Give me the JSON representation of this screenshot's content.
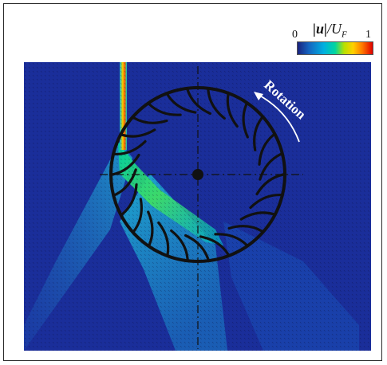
{
  "colorbar": {
    "label": "|u|/U_F",
    "min": "0",
    "max": "1",
    "colors": [
      "#1a237e",
      "#1565c0",
      "#00b0e0",
      "#00d6a0",
      "#b8e000",
      "#ffd000",
      "#ff7a00",
      "#e00000"
    ]
  },
  "annotation": {
    "text": "Rotation"
  },
  "colors": {
    "background_field": "#1a2e9a",
    "runner": "#111111",
    "jet": "#e8a400",
    "arrow_text": "#ffffff"
  },
  "runner": {
    "blade_count": 26
  }
}
